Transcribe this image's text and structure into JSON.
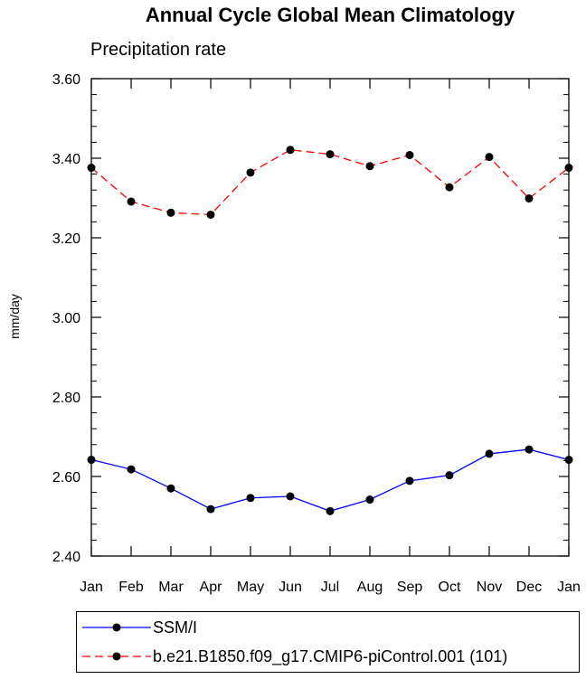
{
  "chart_data": {
    "type": "line",
    "title": "Annual Cycle Global Mean Climatology",
    "subtitle": "Precipitation rate",
    "xlabel": "",
    "ylabel": "mm/day",
    "categories": [
      "Jan",
      "Feb",
      "Mar",
      "Apr",
      "May",
      "Jun",
      "Jul",
      "Aug",
      "Sep",
      "Oct",
      "Nov",
      "Dec",
      "Jan"
    ],
    "ylim": [
      2.4,
      3.6
    ],
    "yticks": [
      "2.40",
      "2.60",
      "2.80",
      "3.00",
      "3.20",
      "3.40",
      "3.60"
    ],
    "ytick_values": [
      2.4,
      2.6,
      2.8,
      3.0,
      3.2,
      3.4,
      3.6
    ],
    "series": [
      {
        "name": "SSM/I",
        "color": "#0000ff",
        "dash": "solid",
        "values": [
          2.642,
          2.618,
          2.57,
          2.518,
          2.546,
          2.55,
          2.513,
          2.542,
          2.589,
          2.603,
          2.657,
          2.668,
          2.642
        ]
      },
      {
        "name": "b.e21.B1850.f09_g17.CMIP6-piControl.001 (101)",
        "color": "#ff0000",
        "dash": "dashed",
        "values": [
          3.376,
          3.291,
          3.263,
          3.258,
          3.364,
          3.421,
          3.41,
          3.38,
          3.408,
          3.327,
          3.403,
          3.299,
          3.376
        ]
      }
    ],
    "grid": false,
    "legend_position": "bottom"
  }
}
